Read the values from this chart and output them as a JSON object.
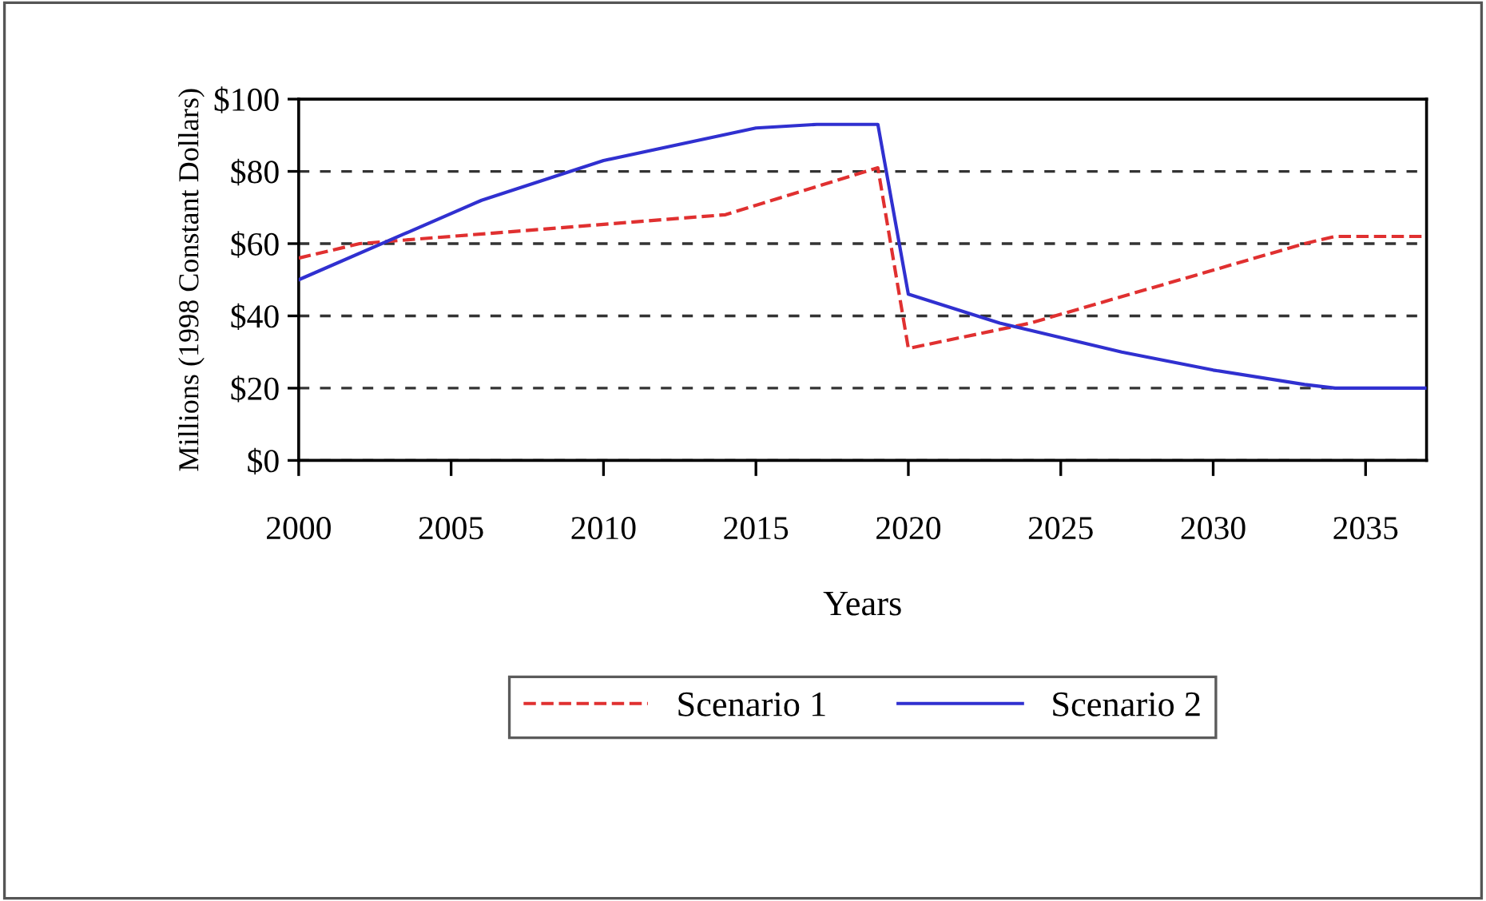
{
  "chart_data": {
    "type": "line",
    "xlabel": "Years",
    "ylabel": "Millions (1998 Constant Dollars)",
    "xlim": [
      2000,
      2037
    ],
    "xticks": [
      2000,
      2005,
      2010,
      2015,
      2020,
      2025,
      2030,
      2035
    ],
    "ylim": [
      0,
      100
    ],
    "yticks": [
      {
        "value": 0,
        "label": "$0"
      },
      {
        "value": 20,
        "label": "$20"
      },
      {
        "value": 40,
        "label": "$40"
      },
      {
        "value": 60,
        "label": "$60"
      },
      {
        "value": 80,
        "label": "$80"
      },
      {
        "value": 100,
        "label": "$100"
      }
    ],
    "grid": "y",
    "legend": "bottom",
    "series": [
      {
        "name": "Scenario 1",
        "color": "#e03030",
        "line_style": "dashed",
        "x": [
          2000,
          2002,
          2014,
          2019,
          2020,
          2024,
          2033,
          2034,
          2037
        ],
        "values": [
          56,
          60,
          68,
          81,
          31,
          38,
          60,
          62,
          62
        ]
      },
      {
        "name": "Scenario 2",
        "color": "#3030d0",
        "line_style": "solid",
        "x": [
          2000,
          2006,
          2010,
          2015,
          2017,
          2019,
          2020,
          2023,
          2027,
          2030,
          2033,
          2034,
          2037
        ],
        "values": [
          50,
          72,
          83,
          92,
          93,
          93,
          46,
          38,
          30,
          25,
          21,
          20,
          20
        ]
      }
    ]
  }
}
